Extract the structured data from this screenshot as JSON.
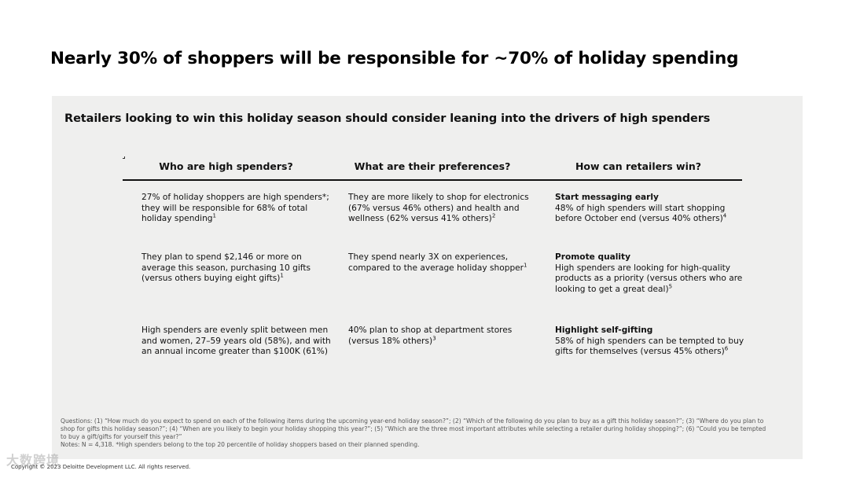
{
  "title": "Nearly 30% of shoppers will be responsible for ~70% of holiday spending",
  "subtitle": "Retailers looking to win this holiday season should consider leaning into the drivers of high spenders",
  "columns": [
    {
      "header": "Who are high spenders?"
    },
    {
      "header": "What are their preferences?"
    },
    {
      "header": "How can retailers win?"
    }
  ],
  "rows": [
    {
      "who": {
        "text": "27% of holiday shoppers are high spenders*; they will be responsible for 68% of total holiday spending",
        "note": "1"
      },
      "prefs": {
        "text": "They are more likely to shop for electronics (67% versus 46% others) and health and wellness (62% versus 41% others)",
        "note": "2"
      },
      "win": {
        "lead": "Start messaging early",
        "text": "48% of high spenders will start shopping before October end (versus 40% others)",
        "note": "4"
      }
    },
    {
      "who": {
        "text": "They plan to spend $2,146 or more on average this season, purchasing 10 gifts (versus others buying eight gifts)",
        "note": "1"
      },
      "prefs": {
        "text": "They spend nearly 3X on experiences, compared to the average holiday shopper",
        "note": "1"
      },
      "win": {
        "lead": "Promote quality",
        "text": "High spenders are looking for high-quality products as a priority (versus others who are looking to get a great deal)",
        "note": "5"
      }
    },
    {
      "who": {
        "text": "High spenders are evenly split between men and women, 27–59 years old (58%), and with an annual income greater than $100K (61%)",
        "note": ""
      },
      "prefs": {
        "text": "40% plan to shop at department stores (versus 18% others)",
        "note": "3"
      },
      "win": {
        "lead": "Highlight self-gifting",
        "text": "58% of high spenders can be tempted to buy gifts for themselves (versus 45% others)",
        "note": "6"
      }
    }
  ],
  "notes": {
    "questions": "Questions: (1) “How much do you expect to spend on each of the following items during the upcoming year-end holiday season?”; (2) “Which of the following do you plan to buy as a gift this holiday season?”; (3) “Where do you plan to shop for gifts this holiday season?”; (4) “When are you likely to begin your holiday shopping this year?”; (5) “Which are the three most important attributes while selecting a retailer during holiday shopping?”; (6) “Could you be tempted to buy a gift/gifts for yourself this year?”",
    "sample": "Notes: N = 4,318. *High spenders belong to the top 20 percentile of holiday shoppers based on their planned spending."
  },
  "copyright": "Copyright © 2023 Deloitte Development LLC. All rights reserved.",
  "watermark": "大数跨境",
  "colors": {
    "panel": "#efefee",
    "text": "#111111",
    "notes": "#555555"
  }
}
